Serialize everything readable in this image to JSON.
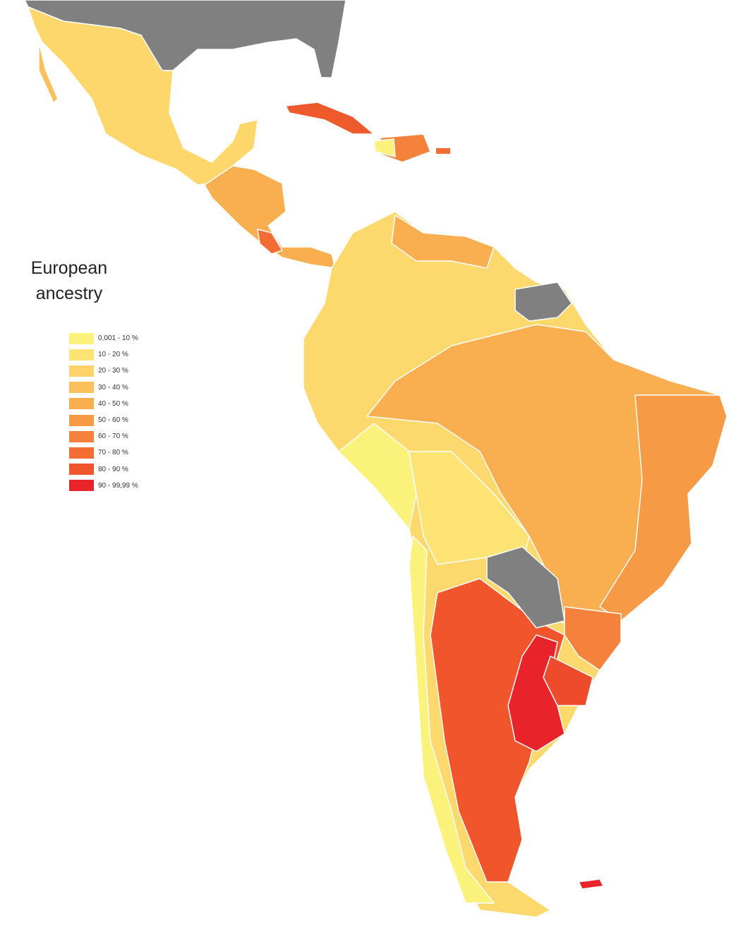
{
  "legend": {
    "title": "European ancestry",
    "items": [
      {
        "label": "0,001 - 10 %",
        "color": "#fbf27c"
      },
      {
        "label": "10 - 20 %",
        "color": "#fde274"
      },
      {
        "label": "20 - 30 %",
        "color": "#fdd36a"
      },
      {
        "label": "30 - 40 %",
        "color": "#fbc05c"
      },
      {
        "label": "40 - 50 %",
        "color": "#f9ae50"
      },
      {
        "label": "50 - 60 %",
        "color": "#f79a46"
      },
      {
        "label": "60 - 70 %",
        "color": "#f5823c"
      },
      {
        "label": "70 - 80 %",
        "color": "#f36c33"
      },
      {
        "label": "80 - 90 %",
        "color": "#f0552c"
      },
      {
        "label": "90 - 99,99 %",
        "color": "#e8242a"
      }
    ]
  }
}
